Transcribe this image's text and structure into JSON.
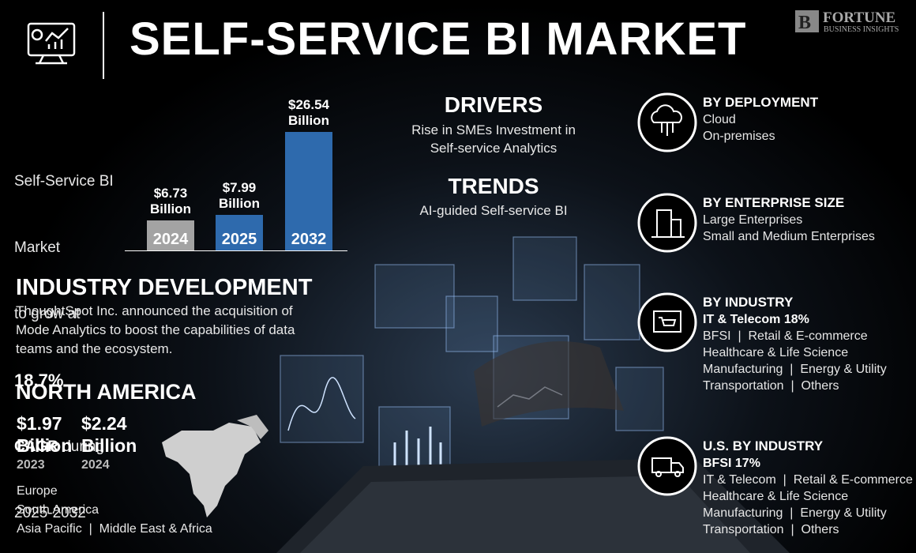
{
  "header": {
    "title": "SELF-SERVICE BI MARKET",
    "logo_name": "FORTUNE",
    "logo_tagline": "BUSINESS INSIGHTS"
  },
  "growth": {
    "line1": "Self-Service BI",
    "line2": "Market",
    "line3": "to grow at",
    "rate": "18.7%",
    "cagr": "CAGR",
    "line4": "during",
    "period": "2025-2032"
  },
  "market_chart": {
    "type": "bar",
    "categories": [
      "2024",
      "2025",
      "2032"
    ],
    "values": [
      6.73,
      7.99,
      26.54
    ],
    "value_labels": [
      "$6.73 Billion",
      "$7.99 Billion",
      "$26.54 Billion"
    ],
    "colors": [
      "#a3a3a3",
      "#2e6aad",
      "#2e6aad"
    ]
  },
  "drivers": {
    "title": "DRIVERS",
    "text": "Rise in SMEs Investment in Self-service Analytics"
  },
  "trends": {
    "title": "TRENDS",
    "text": "AI-guided Self-service BI"
  },
  "industry_development": {
    "title": "INDUSTRY DEVELOPMENT",
    "text": "ThoughtSpot Inc. announced the acquisition of Mode Analytics to boost the capabilities of data teams and the ecosystem."
  },
  "north_america": {
    "title": "NORTH AMERICA",
    "stats": [
      {
        "value": "$1.97 Billion",
        "year": "2023"
      },
      {
        "value": "$2.24 Billion",
        "year": "2024"
      }
    ],
    "regions": [
      "Europe",
      "South America",
      "Asia Pacific  |  Middle East & Africa"
    ]
  },
  "segments": [
    {
      "title": "BY DEPLOYMENT",
      "lines": [
        "Cloud",
        "On-premises"
      ]
    },
    {
      "title": "BY ENTERPRISE SIZE",
      "lines": [
        "Large Enterprises",
        "Small and Medium Enterprises"
      ]
    },
    {
      "title": "BY INDUSTRY",
      "highlight": "IT & Telecom 18%",
      "lines": [
        "BFSI  |  Retail & E-commerce",
        "Healthcare & Life Science",
        "Manufacturing  |  Energy & Utility",
        "Transportation  |  Others"
      ]
    },
    {
      "title": "U.S. BY INDUSTRY",
      "highlight": "BFSI 17%",
      "lines": [
        "IT & Telecom  |  Retail & E-commerce",
        "Healthcare & Life Science",
        "Manufacturing  |  Energy & Utility",
        "Transportation  |  Others"
      ]
    }
  ]
}
